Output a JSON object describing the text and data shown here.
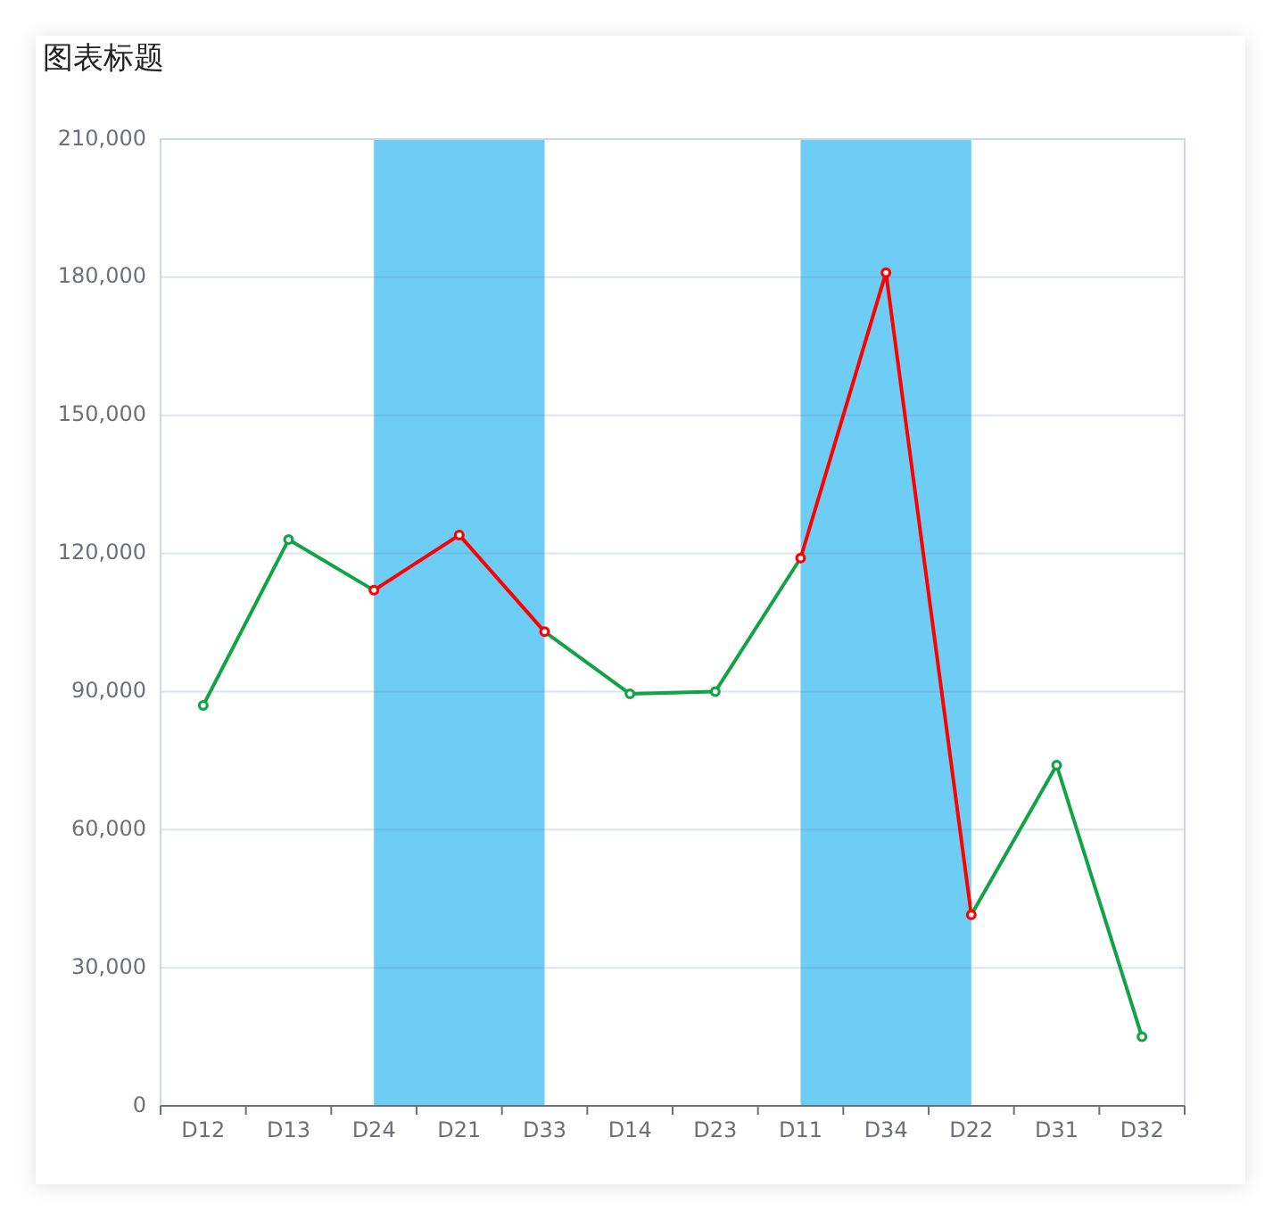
{
  "chart_data": {
    "type": "line",
    "title": "图表标题",
    "categories": [
      "D12",
      "D13",
      "D24",
      "D21",
      "D33",
      "D14",
      "D23",
      "D11",
      "D34",
      "D22",
      "D31",
      "D32"
    ],
    "series": [
      {
        "color": "#10a446",
        "colors": [
          "#10a446",
          "#10a446",
          "#ff0000",
          "#ff0000",
          "#ff0000",
          "#10a446",
          "#10a446",
          "#ff0000",
          "#ff0000",
          "#ff0000",
          "#10a446",
          "#10a446"
        ],
        "values": [
          87000,
          123000,
          112000,
          124000,
          103000,
          89500,
          90000,
          119000,
          181000,
          41500,
          74000,
          15000
        ]
      }
    ],
    "ylim": [
      0,
      210000
    ],
    "yticks": [
      0,
      {
        "value": 30000,
        "label": "30,000"
      },
      {
        "value": 60000,
        "label": "60,000"
      },
      {
        "value": 90000,
        "label": "90,000"
      },
      {
        "value": 120000,
        "label": "120,000"
      },
      {
        "value": 150000,
        "label": "150,000"
      },
      {
        "value": 180000,
        "label": "180,000"
      },
      {
        "value": 210000,
        "label": "210,000"
      }
    ],
    "bands": [
      {
        "axis": "x",
        "from": "D24",
        "to": "D33",
        "color": "#6ecdf4"
      },
      {
        "axis": "x",
        "from": "D11",
        "to": "D22",
        "color": "#6ecdf4"
      }
    ],
    "grid": "y",
    "marker": "circle",
    "line_style": "solid"
  }
}
